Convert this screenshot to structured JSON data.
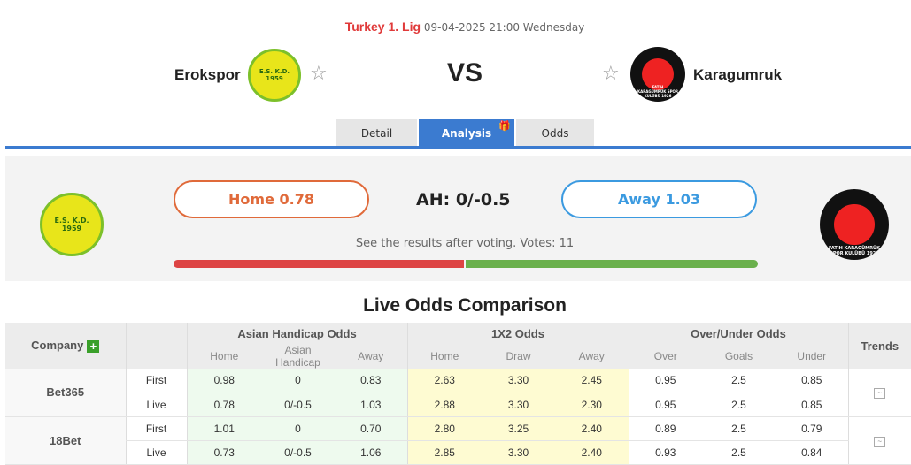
{
  "header": {
    "league": "Turkey 1. Lig",
    "datetime": "09-04-2025 21:00 Wednesday",
    "home": "Erokspor",
    "away": "Karagumruk",
    "vs": "VS",
    "home_logo_text": "E.S. K.D. 1959",
    "away_logo_text": "FATIH KARAGÜMRÜK SPOR KULÜBÜ 1926"
  },
  "tabs": [
    {
      "label": "Detail"
    },
    {
      "label": "Analysis",
      "active": true
    },
    {
      "label": "Odds"
    }
  ],
  "vote": {
    "home": "Home 0.78",
    "ah": "AH: 0/-0.5",
    "away": "Away 1.03",
    "text": "See the results after voting. Votes: 11",
    "home_share": 0.5,
    "colors": {
      "home": "#dd4444",
      "away": "#6ab04c"
    }
  },
  "odds": {
    "title": "Live Odds Comparison",
    "headers": {
      "company": "Company",
      "ah": "Asian Handicap Odds",
      "x12": "1X2 Odds",
      "ou": "Over/Under Odds",
      "trends": "Trends"
    },
    "sub": [
      "Home",
      "Asian Handicap",
      "Away",
      "Home",
      "Draw",
      "Away",
      "Over",
      "Goals",
      "Under"
    ],
    "rows": [
      {
        "company": "Bet365",
        "lines": [
          {
            "type": "First",
            "v": [
              "0.98",
              "0",
              "0.83",
              "2.63",
              "3.30",
              "2.45",
              "0.95",
              "2.5",
              "0.85"
            ]
          },
          {
            "type": "Live",
            "v": [
              "0.78",
              "0/-0.5",
              "1.03",
              "2.88",
              "3.30",
              "2.30",
              "0.95",
              "2.5",
              "0.85"
            ]
          }
        ]
      },
      {
        "company": "18Bet",
        "lines": [
          {
            "type": "First",
            "v": [
              "1.01",
              "0",
              "0.70",
              "2.80",
              "3.25",
              "2.40",
              "0.89",
              "2.5",
              "0.79"
            ]
          },
          {
            "type": "Live",
            "v": [
              "0.73",
              "0/-0.5",
              "1.06",
              "2.85",
              "3.30",
              "2.40",
              "0.93",
              "2.5",
              "0.84"
            ]
          }
        ]
      }
    ]
  }
}
